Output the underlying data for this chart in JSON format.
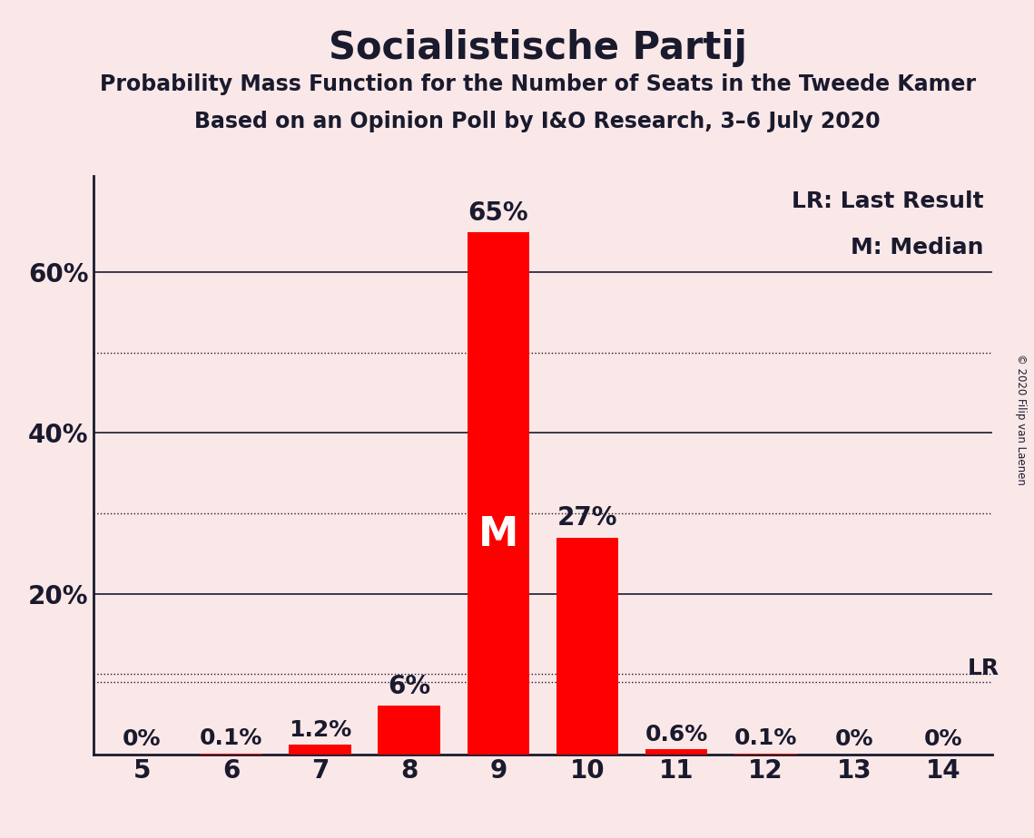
{
  "title": "Socialistische Partij",
  "subtitle1": "Probability Mass Function for the Number of Seats in the Tweede Kamer",
  "subtitle2": "Based on an Opinion Poll by I&O Research, 3–6 July 2020",
  "copyright": "© 2020 Filip van Laenen",
  "categories": [
    5,
    6,
    7,
    8,
    9,
    10,
    11,
    12,
    13,
    14
  ],
  "values": [
    0.0,
    0.1,
    1.2,
    6.0,
    65.0,
    27.0,
    0.6,
    0.1,
    0.0,
    0.0
  ],
  "labels": [
    "0%",
    "0.1%",
    "1.2%",
    "6%",
    "65%",
    "27%",
    "0.6%",
    "0.1%",
    "0%",
    "0%"
  ],
  "bar_color": "#ff0000",
  "background_color": "#fae8e8",
  "median_seat": 9,
  "median_label": "M",
  "lr_seat": 14,
  "lr_value": 9.0,
  "lr_label": "LR",
  "legend_lr": "LR: Last Result",
  "legend_m": "M: Median",
  "ylim": [
    0,
    72
  ],
  "solid_yticks": [
    20,
    40,
    60
  ],
  "dotted_yticks": [
    10,
    30,
    50
  ],
  "ytick_display": [
    20,
    40,
    60
  ],
  "ytick_labels": [
    "20%",
    "40%",
    "60%"
  ],
  "title_fontsize": 30,
  "subtitle_fontsize": 17,
  "label_fontsize": 18,
  "tick_fontsize": 20,
  "legend_fontsize": 18,
  "median_fontsize": 32
}
